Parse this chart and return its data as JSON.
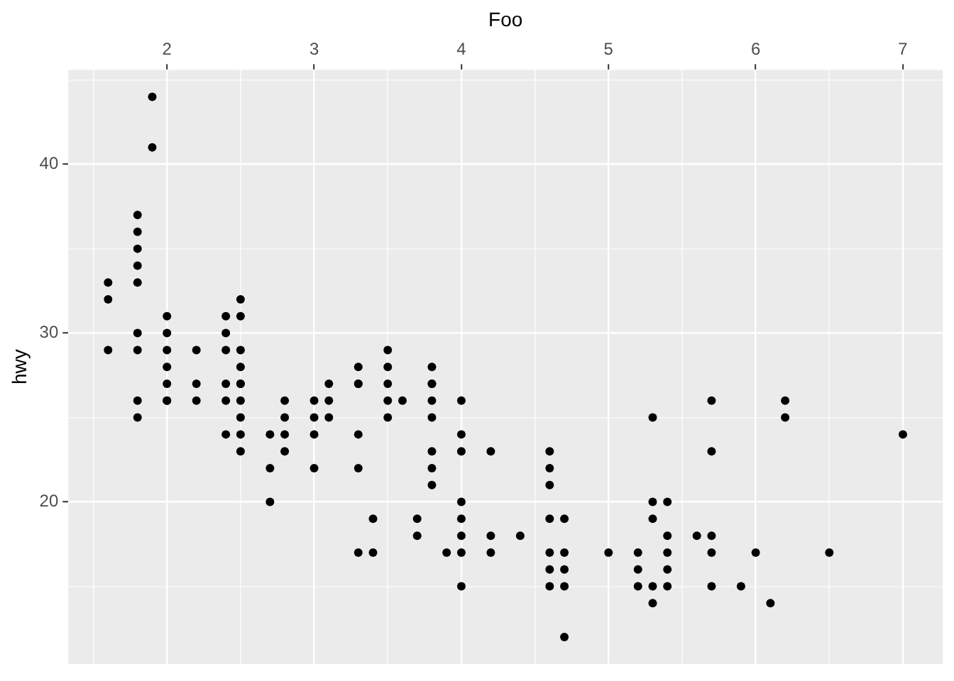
{
  "chart_data": {
    "type": "scatter",
    "xlabel": "Foo",
    "ylabel": "hwy",
    "x": [
      1.9,
      1.9,
      1.8,
      1.8,
      1.8,
      1.8,
      1.8,
      1.8,
      1.8,
      1.6,
      1.6,
      1.6,
      2.0,
      2.0,
      2.0,
      2.0,
      2.2,
      2.4,
      2.4,
      2.4,
      2.5,
      2.5,
      2.5,
      2.5,
      3.3,
      3.5,
      3.5,
      3.8,
      2.0,
      2.5,
      3.3,
      3.8,
      2.0,
      2.2,
      2.4,
      2.5,
      3.1,
      3.3,
      3.5,
      3.8,
      1.8,
      2.0,
      2.2,
      2.4,
      2.5,
      2.8,
      3.0,
      3.1,
      3.5,
      3.6,
      3.8,
      4.0,
      1.8,
      2.5,
      2.8,
      3.0,
      3.1,
      3.5,
      3.8,
      2.4,
      2.5,
      2.7,
      2.8,
      3.0,
      3.3,
      4.0,
      2.5,
      2.8,
      3.8,
      4.0,
      4.2,
      2.7,
      3.0,
      3.3,
      3.8,
      3.8,
      2.7,
      4.0,
      3.4,
      3.7,
      4.0,
      3.7,
      4.0,
      4.2,
      3.3,
      3.4,
      3.9,
      4.0,
      4.2,
      4.0,
      5.7,
      6.2,
      5.3,
      6.2,
      7.0,
      4.6,
      5.7,
      4.6,
      4.6,
      5.3,
      5.4,
      4.6,
      4.7,
      5.3,
      4.4,
      5.4,
      5.6,
      5.7,
      4.6,
      4.7,
      5.0,
      5.2,
      5.4,
      5.7,
      6.0,
      6.5,
      4.6,
      4.7,
      5.2,
      5.4,
      4.6,
      4.7,
      5.2,
      5.3,
      5.4,
      5.7,
      5.9,
      5.3,
      6.1,
      4.7
    ],
    "values": [
      44,
      41,
      37,
      36,
      35,
      34,
      33,
      30,
      29,
      33,
      32,
      29,
      31,
      30,
      29,
      28,
      29,
      31,
      30,
      29,
      32,
      31,
      29,
      28,
      28,
      29,
      28,
      28,
      27,
      27,
      27,
      27,
      26,
      27,
      27,
      27,
      27,
      27,
      27,
      27,
      26,
      26,
      26,
      26,
      26,
      26,
      26,
      26,
      26,
      26,
      26,
      26,
      25,
      25,
      25,
      25,
      25,
      25,
      25,
      24,
      24,
      24,
      24,
      24,
      24,
      24,
      23,
      23,
      23,
      23,
      23,
      22,
      22,
      22,
      22,
      21,
      20,
      20,
      19,
      19,
      19,
      18,
      18,
      18,
      17,
      17,
      17,
      17,
      17,
      15,
      26,
      26,
      25,
      25,
      24,
      23,
      23,
      22,
      21,
      20,
      20,
      19,
      19,
      19,
      18,
      18,
      18,
      18,
      17,
      17,
      17,
      17,
      17,
      17,
      17,
      17,
      16,
      16,
      16,
      16,
      15,
      15,
      15,
      15,
      15,
      15,
      15,
      14,
      14,
      12
    ],
    "color": "#000000",
    "marker": "circle",
    "grid": true,
    "xlim": [
      1.33,
      7.27
    ],
    "xticks": [
      {
        "value": 1.5,
        "label": null
      },
      2,
      {
        "value": 2.5,
        "label": null
      },
      3,
      {
        "value": 3.5,
        "label": null
      },
      4,
      {
        "value": 4.5,
        "label": null
      },
      5,
      {
        "value": 5.5,
        "label": null
      },
      6,
      {
        "value": 6.5,
        "label": null
      },
      7
    ],
    "ylim": [
      10.4,
      45.6
    ],
    "yticks": [
      {
        "value": 15,
        "label": null
      },
      20,
      {
        "value": 25,
        "label": null
      },
      30,
      {
        "value": 35,
        "label": null
      },
      40,
      {
        "value": 45,
        "label": null
      }
    ]
  }
}
